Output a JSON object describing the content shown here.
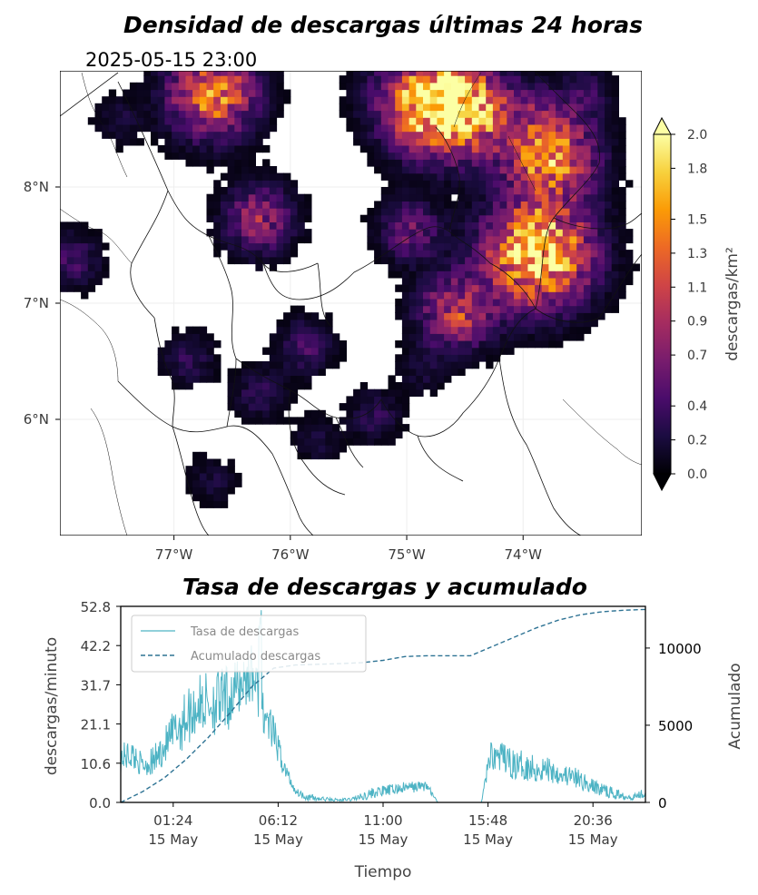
{
  "chart_data": [
    {
      "type": "heatmap",
      "title": "Densidad de descargas últimas 24 horas",
      "subtitle": "2025-05-15 23:00",
      "x_ticks": [
        "77°W",
        "76°W",
        "75°W",
        "74°W"
      ],
      "x_tick_values": [
        -77,
        -76,
        -75,
        -74
      ],
      "y_ticks": [
        "8°N",
        "7°N",
        "6°N"
      ],
      "y_tick_values": [
        8,
        7,
        6
      ],
      "xlim": [
        -77.98,
        -72.98
      ],
      "ylim": [
        5.0,
        9.0
      ],
      "colorbar": {
        "label": "descargas/km²",
        "ticks": [
          "0.0",
          "0.2",
          "0.4",
          "0.7",
          "0.9",
          "1.1",
          "1.3",
          "1.5",
          "1.8",
          "2.0"
        ],
        "tick_values": [
          0.0,
          0.2,
          0.4,
          0.7,
          0.9,
          1.1,
          1.3,
          1.5,
          1.8,
          2.0
        ],
        "range": [
          0.0,
          2.0
        ],
        "colormap": [
          "#000004",
          "#1b0c41",
          "#4a0c6b",
          "#781c6d",
          "#a52c60",
          "#cf4446",
          "#ed6925",
          "#fb9b06",
          "#f7d13d",
          "#fcffa4"
        ]
      },
      "clusters": [
        {
          "lon": -76.7,
          "lat": 8.78,
          "intensity": 1.4
        },
        {
          "lon": -74.8,
          "lat": 8.72,
          "intensity": 1.9
        },
        {
          "lon": -74.5,
          "lat": 8.6,
          "intensity": 1.2
        },
        {
          "lon": -73.8,
          "lat": 8.25,
          "intensity": 1.5
        },
        {
          "lon": -73.9,
          "lat": 7.4,
          "intensity": 2.0
        },
        {
          "lon": -74.6,
          "lat": 6.9,
          "intensity": 1.0
        },
        {
          "lon": -75.0,
          "lat": 7.6,
          "intensity": 0.6
        },
        {
          "lon": -76.3,
          "lat": 7.7,
          "intensity": 0.8
        },
        {
          "lon": -77.9,
          "lat": 7.35,
          "intensity": 0.4
        },
        {
          "lon": -76.9,
          "lat": 6.5,
          "intensity": 0.3
        },
        {
          "lon": -76.3,
          "lat": 6.2,
          "intensity": 0.3
        },
        {
          "lon": -75.3,
          "lat": 6.0,
          "intensity": 0.3
        },
        {
          "lon": -76.7,
          "lat": 5.45,
          "intensity": 0.2
        },
        {
          "lon": -75.8,
          "lat": 5.8,
          "intensity": 0.2
        },
        {
          "lon": -75.9,
          "lat": 6.6,
          "intensity": 0.4
        },
        {
          "lon": -77.5,
          "lat": 8.55,
          "intensity": 0.2
        },
        {
          "lon": -74.0,
          "lat": 8.7,
          "intensity": 0.3
        },
        {
          "lon": -73.5,
          "lat": 8.8,
          "intensity": 0.3
        },
        {
          "lon": -74.9,
          "lat": 6.4,
          "intensity": 0.2
        }
      ]
    },
    {
      "type": "line",
      "title": "Tasa de descargas y acumulado",
      "xlabel": "Tiempo",
      "ylabel": "descargas/minuto",
      "y2label": "Acumulado",
      "x_ticks": [
        "01:24\n15 May",
        "06:12\n15 May",
        "11:00\n15 May",
        "15:48\n15 May",
        "20:36\n15 May"
      ],
      "x_tick_hours": [
        1.4,
        6.2,
        11.0,
        15.8,
        20.6
      ],
      "xlim_hours": [
        -1.0,
        23.0
      ],
      "y_ticks": [
        "0.0",
        "10.6",
        "21.1",
        "31.7",
        "42.2",
        "52.8"
      ],
      "ylim": [
        0,
        52.8
      ],
      "y2_ticks": [
        "0",
        "5000",
        "10000"
      ],
      "y2lim": [
        0,
        12700
      ],
      "legend": {
        "position": "top-left"
      },
      "series": [
        {
          "name": "Tasa de descargas",
          "color": "#4db3c4",
          "hours": [
            -1.0,
            -0.5,
            0.0,
            0.5,
            1.0,
            1.5,
            2.0,
            2.5,
            3.0,
            3.5,
            4.0,
            4.5,
            5.0,
            5.5,
            6.0,
            6.5,
            7.0,
            7.5,
            8.0,
            8.5,
            9.0,
            9.5,
            10.0,
            10.5,
            11.0,
            11.5,
            12.0,
            12.5,
            13.0,
            13.5,
            14.0,
            14.5,
            15.0,
            15.5,
            15.9,
            16.5,
            17.0,
            17.5,
            18.0,
            18.5,
            19.0,
            19.5,
            20.0,
            20.5,
            21.0,
            21.5,
            22.0,
            22.5,
            23.0
          ],
          "values": [
            12,
            13,
            10,
            11,
            15,
            19,
            23,
            26,
            27,
            27,
            28,
            32,
            35,
            25,
            18,
            9,
            3,
            1.5,
            1,
            0.8,
            0.6,
            0.8,
            1.5,
            2.5,
            3,
            3.5,
            4,
            4.2,
            4.5,
            0,
            0,
            0,
            0,
            0,
            13,
            12,
            10,
            10,
            9,
            9,
            8,
            7,
            6,
            4.5,
            3.5,
            2.5,
            1.8,
            1.5,
            3
          ],
          "noise": [
            4,
            4,
            3,
            4,
            5,
            7,
            8,
            8,
            9,
            9,
            9,
            8,
            8,
            6,
            5,
            3,
            1,
            1,
            1,
            0.5,
            0.5,
            0.5,
            1,
            1.5,
            1.5,
            1.5,
            1.5,
            1.5,
            1.5,
            0,
            0,
            0,
            0,
            0,
            4,
            4,
            4,
            4,
            4,
            4,
            3,
            3,
            3,
            2,
            2,
            1.5,
            1,
            1,
            1.5
          ]
        },
        {
          "name": "Acumulado descargas",
          "color": "#2e7394",
          "axis": "right",
          "hours": [
            -1.0,
            0.0,
            1.0,
            2.0,
            3.0,
            4.0,
            5.0,
            6.0,
            7.0,
            8.0,
            9.0,
            10.0,
            11.0,
            12.0,
            13.0,
            14.0,
            15.0,
            16.0,
            17.0,
            18.0,
            19.0,
            20.0,
            21.0,
            22.0,
            23.0
          ],
          "values": [
            0,
            700,
            1600,
            2800,
            4200,
            5800,
            7500,
            8700,
            8900,
            8950,
            8990,
            9050,
            9200,
            9450,
            9500,
            9500,
            9500,
            10100,
            10700,
            11300,
            11800,
            12150,
            12350,
            12450,
            12500
          ]
        }
      ]
    }
  ]
}
